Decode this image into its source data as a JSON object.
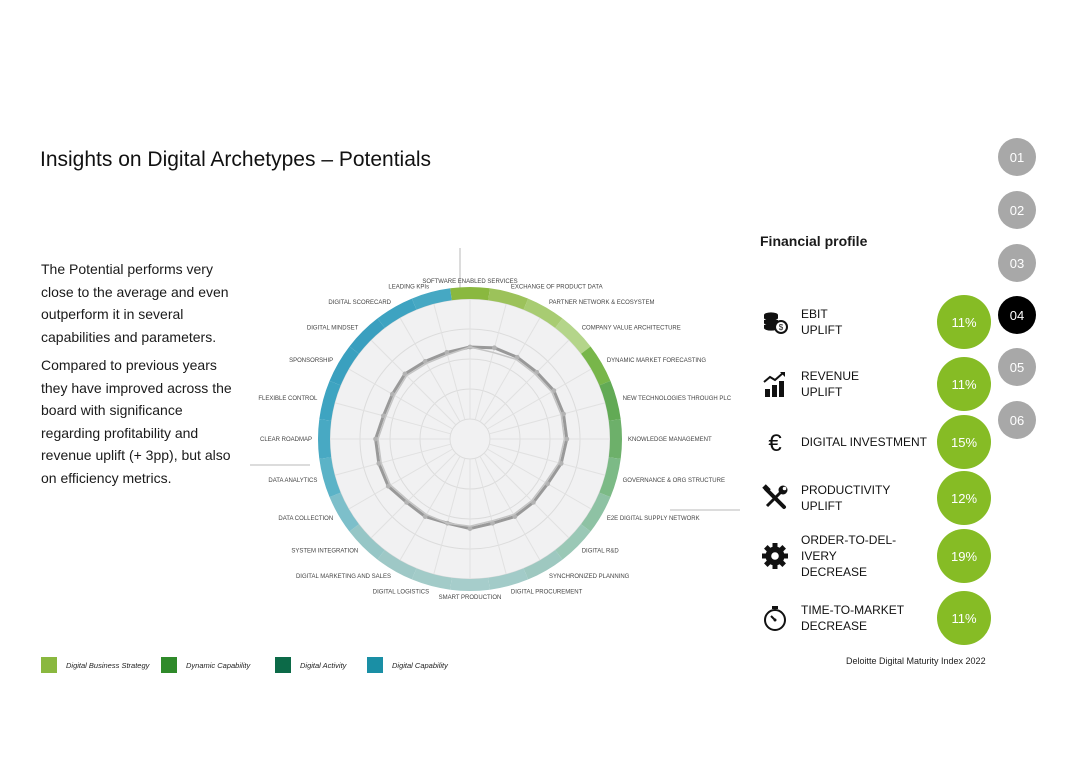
{
  "title": "Insights on Digital Archetypes – Potentials",
  "paragraph1": "The Potential performs very close to the average and even outperform it in several capabilities and parameters.",
  "paragraph2": "Compared to previous years they have improved across the board with significance regarding profitability and revenue uplift (+ 3pp), but also on efficiency metrics.",
  "financial_profile": {
    "title": "Financial profile",
    "items": [
      {
        "icon": "coins-icon",
        "label": "EBIT\nUPLIFT",
        "value": "11%"
      },
      {
        "icon": "growth-chart-icon",
        "label": "REVENUE\nUPLIFT",
        "value": "11%"
      },
      {
        "icon": "euro-icon",
        "label": "DIGITAL INVESTMENT",
        "value": "15%"
      },
      {
        "icon": "tools-icon",
        "label": "PRODUCTIVITY UPLIFT",
        "value": "12%"
      },
      {
        "icon": "gear-icon",
        "label": "ORDER-TO-DEL-IVERY\nDECREASE",
        "value": "19%"
      },
      {
        "icon": "stopwatch-icon",
        "label": "TIME-TO-MARKET\nDECREASE",
        "value": "11%"
      }
    ]
  },
  "nav": [
    "01",
    "02",
    "03",
    "04",
    "05",
    "06"
  ],
  "nav_active": "04",
  "legend": [
    {
      "label": "Digital Business Strategy",
      "color": "#8ab83f"
    },
    {
      "label": "Dynamic Capability",
      "color": "#2f8a2a"
    },
    {
      "label": "Digital Activity",
      "color": "#0c6a48"
    },
    {
      "label": "Digital Capability",
      "color": "#1a8fa5"
    }
  ],
  "footer": "Deloitte Digital Maturity Index 2022",
  "colors": {
    "accent_green": "#86bc25",
    "nav_grey": "#a8a8a8",
    "nav_active": "#000000"
  },
  "chart_data": {
    "type": "radar",
    "title": "",
    "rmax": 5,
    "rings": 5,
    "categories": [
      "SOFTWARE ENABLED SERVICES",
      "EXCHANGE OF PRODUCT DATA",
      "PARTNER NETWORK & ECOSYSTEM",
      "COMPANY VALUE ARCHITECTURE",
      "DYNAMIC MARKET FORECASTING",
      "NEW TECHNOLOGIES THROUGH PLC",
      "KNOWLEDGE MANAGEMENT",
      "GOVERNANCE & ORG STRUCTURE",
      "E2E DIGITAL SUPPLY NETWORK",
      "DIGITAL R&D",
      "SYNCHRONIZED PLANNING",
      "DIGITAL PROCUREMENT",
      "SMART PRODUCTION",
      "DIGITAL LOGISTICS",
      "DIGITAL MARKETING AND SALES",
      "SYSTEM INTEGRATION",
      "DATA COLLECTION",
      "DATA ANALYTICS",
      "CLEAR ROADMAP",
      "FLEXIBLE CONTROL",
      "SPONSORSHIP",
      "DIGITAL MINDSET",
      "DIGITAL SCORECARD",
      "LEADING KPIs"
    ],
    "group_colors": [
      "#8ab83f",
      "#9cc25a",
      "#a8cc72",
      "#b4d58a",
      "#78b64a",
      "#62aa55",
      "#6db06a",
      "#7cba86",
      "#8ec2a4",
      "#9ac8b6",
      "#9ec8c0",
      "#a2cbc8",
      "#a6cdcb",
      "#a2cbc8",
      "#9ec8c6",
      "#96c6c6",
      "#7dbfca",
      "#5bb3c7",
      "#48a9c3",
      "#3ea4c1",
      "#3aa0bf",
      "#3a9fbf",
      "#3ea3c1",
      "#46a8c3"
    ],
    "series": [
      {
        "values": [
          3.0,
          3.1,
          3.1,
          3.1,
          3.2,
          3.2,
          3.2,
          3.1,
          2.9,
          2.9,
          2.9,
          2.8,
          2.9,
          2.8,
          2.9,
          2.9,
          3.1,
          3.1,
          3.1,
          2.9,
          2.9,
          3.0,
          2.9,
          2.9
        ]
      },
      {
        "values": [
          3.0,
          2.9,
          3.0,
          3.0,
          3.1,
          3.1,
          3.1,
          3.0,
          2.8,
          2.8,
          2.8,
          2.7,
          2.8,
          2.8,
          2.8,
          2.8,
          3.0,
          3.0,
          3.0,
          2.8,
          2.8,
          2.9,
          2.8,
          2.8
        ]
      }
    ]
  }
}
